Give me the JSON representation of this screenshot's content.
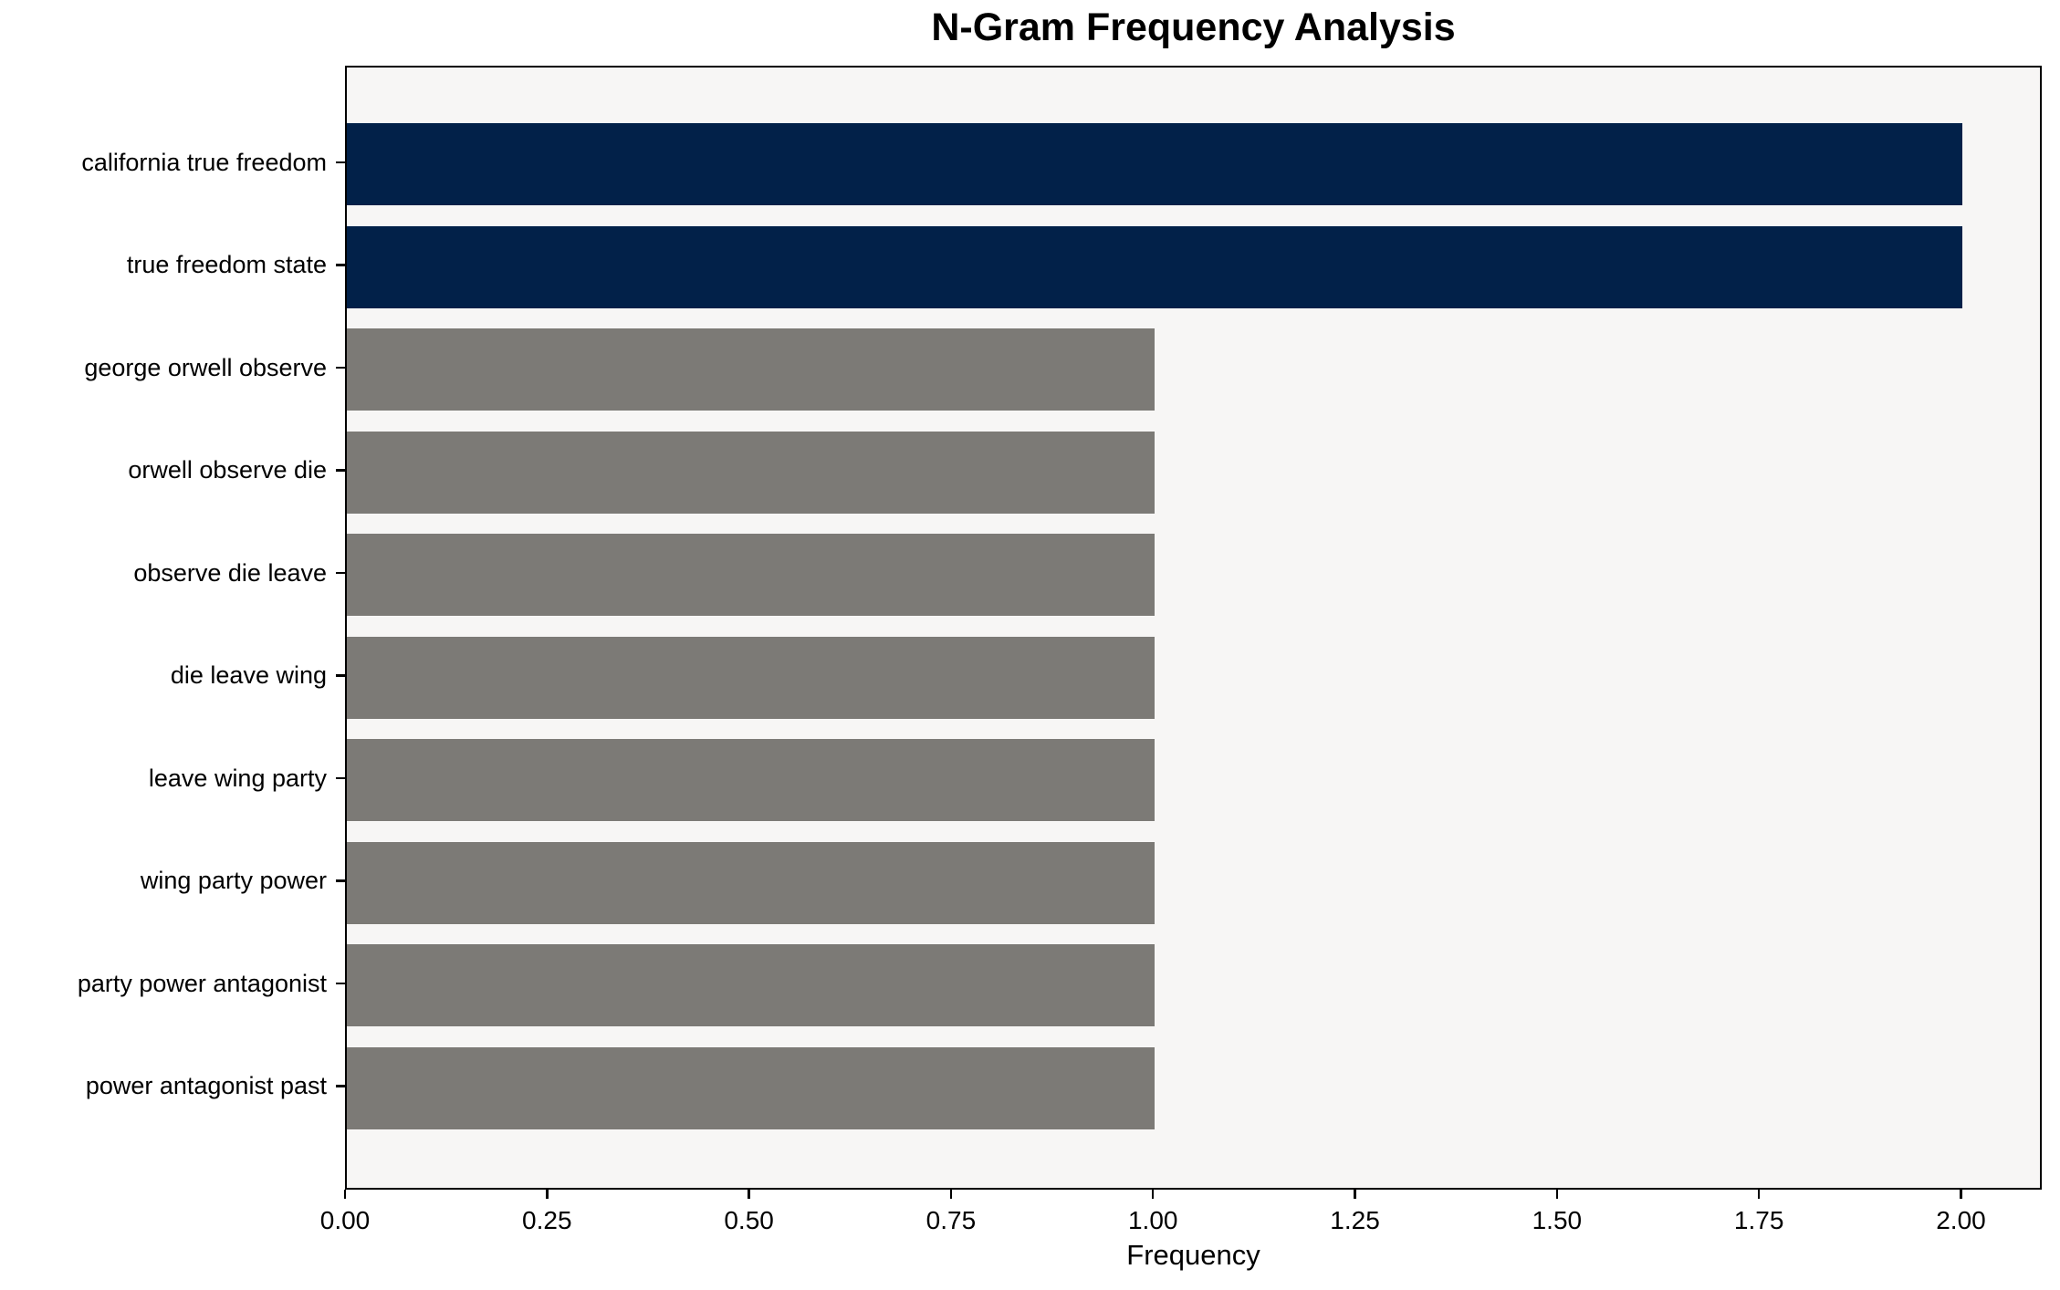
{
  "chart_data": {
    "type": "bar",
    "orientation": "horizontal",
    "title": "N-Gram Frequency Analysis",
    "xlabel": "Frequency",
    "ylabel": "",
    "categories": [
      "california true freedom",
      "true freedom state",
      "george orwell observe",
      "orwell observe die",
      "observe die leave",
      "die leave wing",
      "leave wing party",
      "wing party power",
      "party power antagonist",
      "power antagonist past"
    ],
    "values": [
      2,
      2,
      1,
      1,
      1,
      1,
      1,
      1,
      1,
      1
    ],
    "bar_colors": [
      "#022149",
      "#022149",
      "#7c7a76",
      "#7c7a76",
      "#7c7a76",
      "#7c7a76",
      "#7c7a76",
      "#7c7a76",
      "#7c7a76",
      "#7c7a76"
    ],
    "x_ticks": [
      0,
      0.25,
      0.5,
      0.75,
      1.0,
      1.25,
      1.5,
      1.75,
      2.0
    ],
    "x_tick_labels": [
      "0.00",
      "0.25",
      "0.50",
      "0.75",
      "1.00",
      "1.25",
      "1.50",
      "1.75",
      "2.00"
    ],
    "xlim": [
      0,
      2.1
    ],
    "grid": false,
    "legend_position": "none",
    "colors": {
      "highlight": "#022149",
      "default": "#7c7a76",
      "plot_background": "#f7f6f5",
      "figure_background": "#ffffff",
      "axis": "#000000",
      "text": "#000000"
    }
  }
}
